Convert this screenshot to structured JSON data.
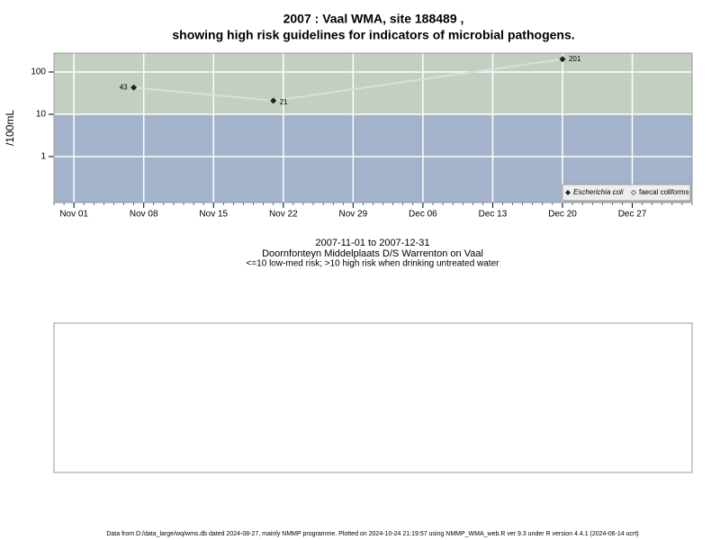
{
  "chart_data": {
    "type": "line",
    "title": "2007 : Vaal WMA, site 188489 ,",
    "subtitle": "showing high risk guidelines for indicators of microbial pathogens.",
    "ylabel": "/100mL",
    "x": [
      "2007-11-07",
      "2007-11-21",
      "2007-12-20"
    ],
    "series": [
      {
        "name": "Escherichia coli",
        "color": "#222222",
        "values": [
          43,
          21,
          201
        ]
      },
      {
        "name": "faecal coliforms",
        "color": "#222222",
        "values": [
          null,
          null,
          null
        ]
      }
    ],
    "line_color": "#dddddd",
    "log_y": true,
    "ylim": [
      0.082,
      280
    ],
    "yticks": [
      1,
      10,
      100
    ],
    "xlim": [
      "2007-10-30",
      "2008-01-02"
    ],
    "xticks": [
      {
        "value": "2007-11-01",
        "label": "Nov 01"
      },
      {
        "value": "2007-11-08",
        "label": "Nov 08"
      },
      {
        "value": "2007-11-15",
        "label": "Nov 15"
      },
      {
        "value": "2007-11-22",
        "label": "Nov 22"
      },
      {
        "value": "2007-11-29",
        "label": "Nov 29"
      },
      {
        "value": "2007-12-06",
        "label": "Dec 06"
      },
      {
        "value": "2007-12-13",
        "label": "Dec 13"
      },
      {
        "value": "2007-12-20",
        "label": "Dec 20"
      },
      {
        "value": "2007-12-27",
        "label": "Dec 27"
      }
    ],
    "risk_threshold": 10,
    "band_colors": {
      "high": "#c3cfc1",
      "low": "#a2b3cb"
    },
    "grid": true,
    "legend_position": "bottom-right",
    "caption": [
      "2007-11-01 to 2007-12-31",
      "Doornfonteyn Middelplaats D/S Warrenton on Vaal",
      "<=10 low-med risk; >10 high risk when drinking untreated water"
    ],
    "footer": "Data from D:/data_large/wq/wms.db dated 2024-08-27, mainly NMMP programme. Plotted on 2024-10-24 21:19:57 using NMMP_WMA_web.R ver 9.3 under R version 4.4.1 (2024-06-14 ucrt)"
  }
}
